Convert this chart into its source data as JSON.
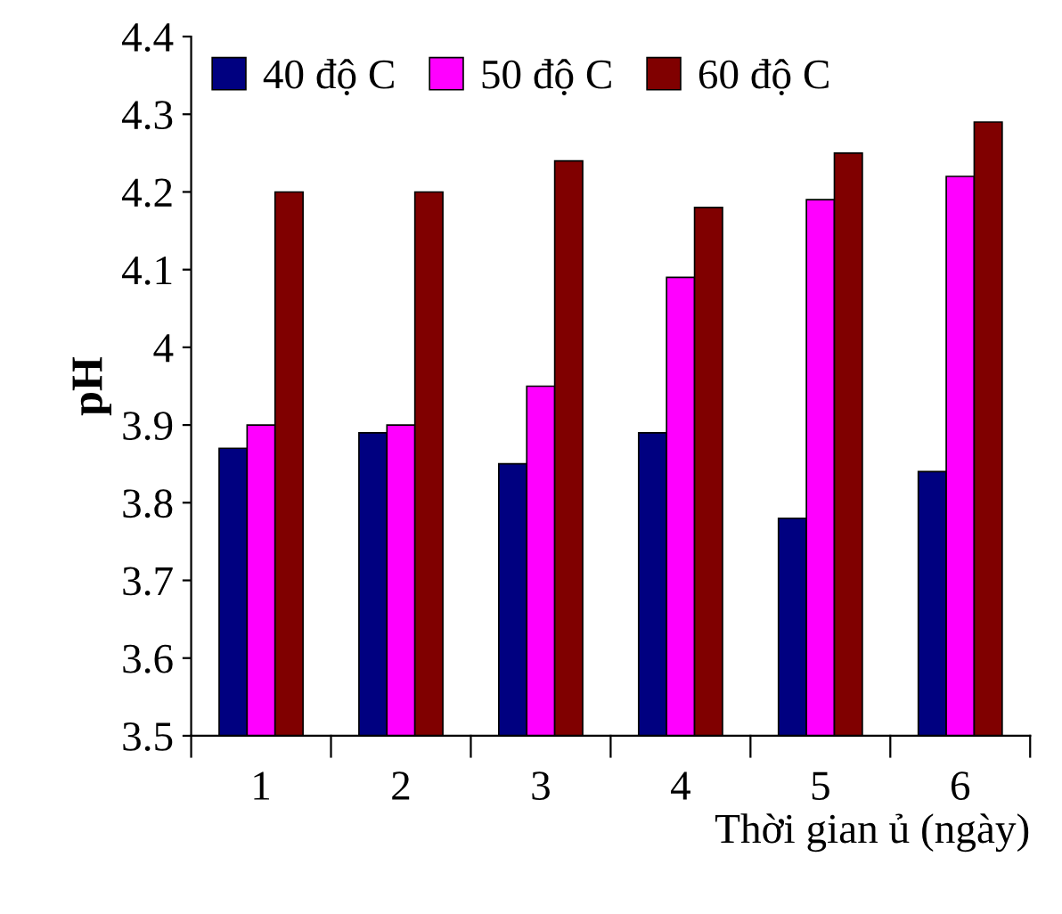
{
  "chart_data": {
    "type": "bar",
    "xlabel": "Thời gian ủ (ngày)",
    "ylabel": "pH",
    "categories": [
      "1",
      "2",
      "3",
      "4",
      "5",
      "6"
    ],
    "series": [
      {
        "name": "40 độ C",
        "color": "#000080",
        "values": [
          3.87,
          3.89,
          3.85,
          3.89,
          3.78,
          3.84
        ]
      },
      {
        "name": "50 độ C",
        "color": "#ff00ff",
        "values": [
          3.9,
          3.9,
          3.95,
          4.09,
          4.19,
          4.22
        ]
      },
      {
        "name": "60 độ C",
        "color": "#800000",
        "values": [
          4.2,
          4.2,
          4.24,
          4.18,
          4.25,
          4.29
        ]
      }
    ],
    "ylim": [
      3.5,
      4.4
    ],
    "yticks": [
      3.5,
      3.6,
      3.7,
      3.8,
      3.9,
      {
        "value": 4.0,
        "label": "4"
      },
      4.1,
      4.2,
      4.3,
      4.4
    ],
    "grid": false,
    "legend": "top left"
  }
}
